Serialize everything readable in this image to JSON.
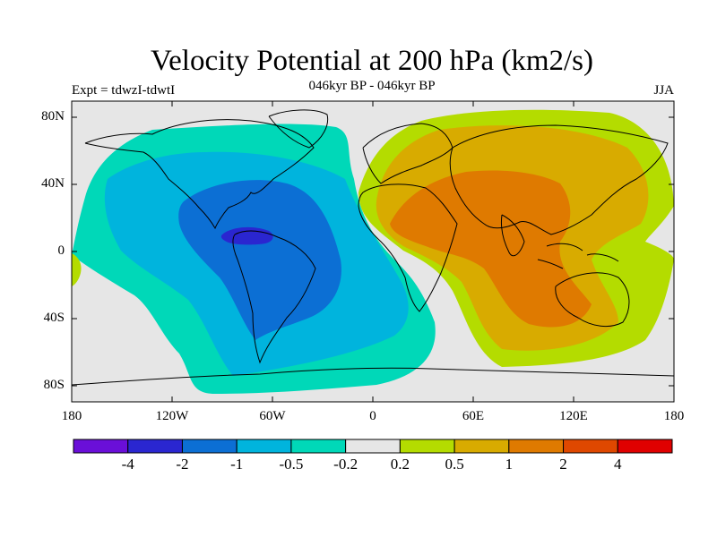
{
  "title": "Velocity Potential at 200 hPa (km2/s)",
  "subtitle": "046kyr BP - 046kyr BP",
  "left_label": "Expt = tdwzI-tdwtI",
  "right_label": "JJA",
  "lat_labels": [
    "80N",
    "40N",
    "0",
    "40S",
    "80S"
  ],
  "lon_labels": [
    "180",
    "120W",
    "60W",
    "0",
    "60E",
    "120E",
    "180"
  ],
  "colorbar": {
    "colors": [
      "#6a0fd8",
      "#2a26d0",
      "#0c6fd4",
      "#00b4dd",
      "#00d8b8",
      "#e6e6e6",
      "#b4dc00",
      "#d8ab00",
      "#df7a00",
      "#df4800",
      "#e00000",
      "#e80000"
    ],
    "labels": [
      "-4",
      "-2",
      "-1",
      "-0.5",
      "-0.2",
      "0.2",
      "0.5",
      "1",
      "2",
      "4"
    ]
  }
}
